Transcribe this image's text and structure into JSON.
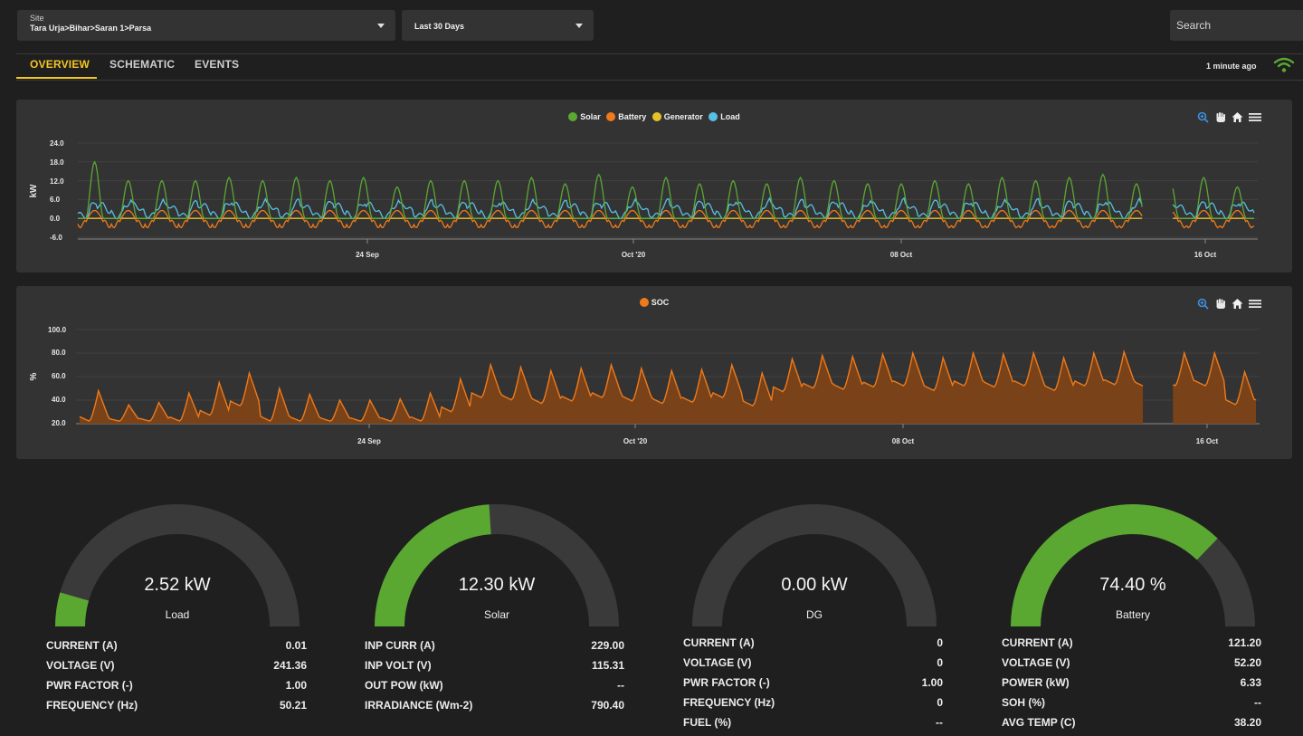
{
  "header": {
    "site_label": "Site",
    "site_value": "Tara Urja>Bihar>Saran 1>Parsa",
    "range_value": "Last 30 Days",
    "search_placeholder": "Search",
    "updated": "1 minute ago"
  },
  "tabs": [
    {
      "label": "OVERVIEW",
      "active": true
    },
    {
      "label": "SCHEMATIC",
      "active": false
    },
    {
      "label": "EVENTS",
      "active": false
    }
  ],
  "colors": {
    "solar": "#5aa832",
    "battery": "#ef7a1a",
    "generator": "#e7c12a",
    "load": "#59bfe6",
    "accent": "#f3c623",
    "gauge_track": "#3a3a3a",
    "gauge_fill": "#5aa832"
  },
  "chart_data": [
    {
      "type": "line",
      "legend": [
        "Solar",
        "Battery",
        "Generator",
        "Load"
      ],
      "ylabel": "kW",
      "ylim": [
        -6,
        24
      ],
      "yticks": [
        "24.0",
        "18.0",
        "12.0",
        "6.0",
        "0.0",
        "-6.0"
      ],
      "xticks": [
        "24 Sep",
        "Oct '20",
        "08 Oct",
        "16 Oct"
      ],
      "series": [
        {
          "name": "Solar",
          "daily_peaks": [
            18,
            12,
            12,
            12,
            13,
            12,
            13,
            12,
            13,
            10,
            12,
            12,
            12,
            13,
            11,
            14,
            10,
            13,
            11,
            12,
            11,
            13,
            12,
            11,
            11,
            12,
            11,
            13,
            12,
            13,
            14,
            11,
            12,
            13,
            10
          ]
        },
        {
          "name": "Battery",
          "typical_range": [
            -3,
            6
          ]
        },
        {
          "name": "Generator",
          "value": 0
        },
        {
          "name": "Load",
          "typical_range": [
            1,
            9
          ]
        }
      ]
    },
    {
      "type": "area",
      "legend": [
        "SOC"
      ],
      "ylabel": "%",
      "ylim": [
        20,
        100
      ],
      "yticks": [
        "100.0",
        "80.0",
        "60.0",
        "40.0",
        "20.0"
      ],
      "xticks": [
        "24 Sep",
        "Oct '20",
        "08 Oct",
        "16 Oct"
      ],
      "series": [
        {
          "name": "SOC",
          "daily_peaks": [
            48,
            36,
            38,
            46,
            55,
            63,
            50,
            45,
            40,
            40,
            41,
            46,
            58,
            70,
            68,
            65,
            67,
            70,
            67,
            65,
            66,
            70,
            63,
            75,
            78,
            77,
            79,
            80,
            76,
            80,
            79,
            80,
            76,
            80,
            81,
            79,
            80,
            80,
            64
          ]
        }
      ]
    }
  ],
  "gauges": [
    {
      "value_text": "2.52 kW",
      "name": "Load",
      "fraction": 0.09,
      "stats": [
        {
          "k": "CURRENT (A)",
          "v": "0.01"
        },
        {
          "k": "VOLTAGE (V)",
          "v": "241.36"
        },
        {
          "k": "PWR FACTOR (-)",
          "v": "1.00"
        },
        {
          "k": "FREQUENCY (Hz)",
          "v": "50.21"
        }
      ]
    },
    {
      "value_text": "12.30 kW",
      "name": "Solar",
      "fraction": 0.48,
      "stats": [
        {
          "k": "INP CURR (A)",
          "v": "229.00"
        },
        {
          "k": "INP VOLT (V)",
          "v": "115.31"
        },
        {
          "k": "OUT POW (kW)",
          "v": "--"
        },
        {
          "k": "IRRADIANCE (Wm-2)",
          "v": "790.40"
        }
      ]
    },
    {
      "value_text": "0.00 kW",
      "name": "DG",
      "fraction": 0,
      "stats": [
        {
          "k": "CURRENT (A)",
          "v": "0"
        },
        {
          "k": "VOLTAGE (V)",
          "v": "0"
        },
        {
          "k": "PWR FACTOR (-)",
          "v": "1.00"
        },
        {
          "k": "FREQUENCY (Hz)",
          "v": "0"
        },
        {
          "k": "FUEL (%)",
          "v": "--"
        }
      ]
    },
    {
      "value_text": "74.40 %",
      "name": "Battery",
      "fraction": 0.744,
      "stats": [
        {
          "k": "CURRENT (A)",
          "v": "121.20"
        },
        {
          "k": "VOLTAGE (V)",
          "v": "52.20"
        },
        {
          "k": "POWER (kW)",
          "v": "6.33"
        },
        {
          "k": "SOH (%)",
          "v": "--"
        },
        {
          "k": "AVG TEMP (C)",
          "v": "38.20"
        }
      ]
    }
  ]
}
